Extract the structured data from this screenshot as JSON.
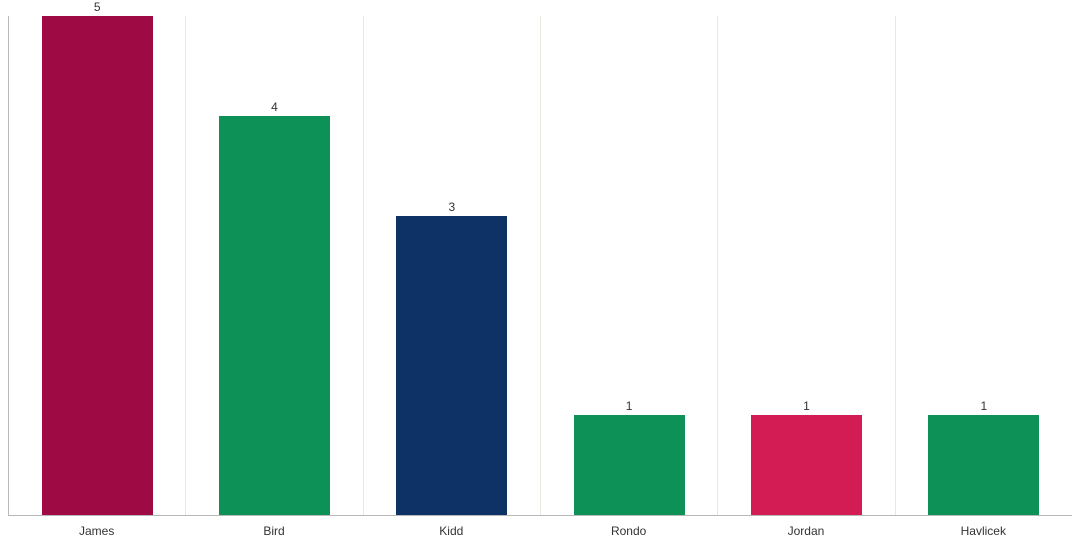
{
  "chart": {
    "type": "bar",
    "categories": [
      "James",
      "Bird",
      "Kidd",
      "Rondo",
      "Jordan",
      "Havlicek"
    ],
    "values": [
      5,
      4,
      3,
      1,
      1,
      1
    ],
    "bar_colors": [
      "#9e0a44",
      "#0d9157",
      "#0f3266",
      "#0d9157",
      "#d41c54",
      "#0d9157"
    ],
    "ymax": 5,
    "background_color": "#ffffff",
    "axis_color": "#b8b8b8",
    "value_label_fontsize": 12,
    "x_label_fontsize": 12,
    "label_color": "#333333",
    "bar_width": 0.63,
    "separator_color": "#e9e5df"
  }
}
